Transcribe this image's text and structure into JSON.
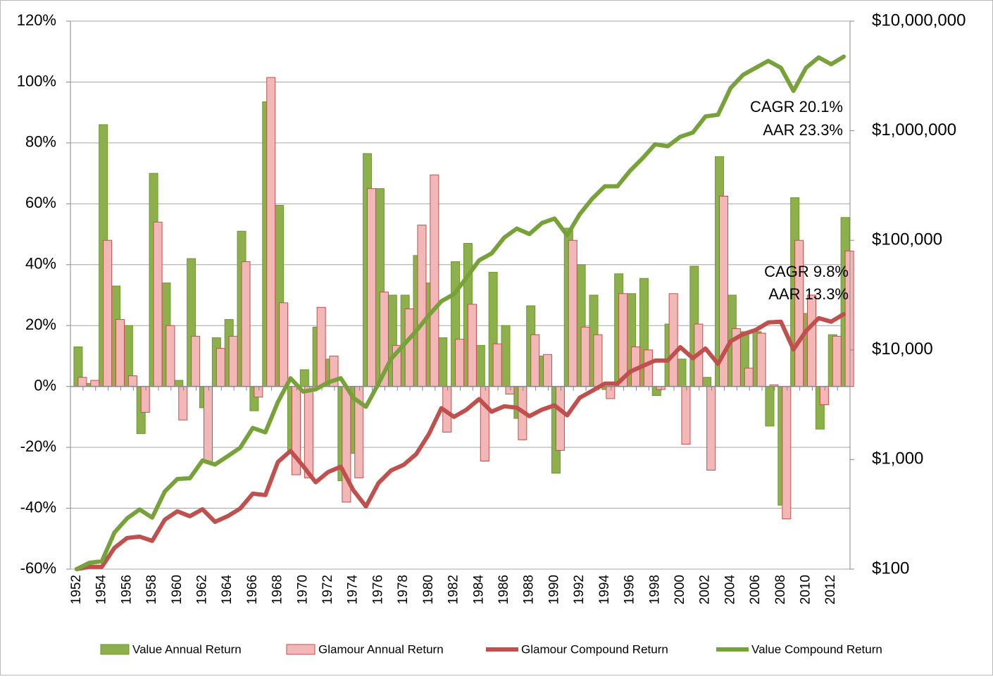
{
  "chart_data": {
    "type": "combo",
    "categories": [
      "1952",
      null,
      "1954",
      null,
      "1956",
      null,
      "1958",
      null,
      "1960",
      null,
      "1962",
      null,
      "1964",
      null,
      "1966",
      null,
      "1968",
      null,
      "1970",
      null,
      "1972",
      null,
      "1974",
      null,
      "1976",
      null,
      "1978",
      null,
      "1980",
      null,
      "1982",
      null,
      "1984",
      null,
      "1986",
      null,
      "1988",
      null,
      "1990",
      null,
      "1992",
      null,
      "1994",
      null,
      "1996",
      null,
      "1998",
      null,
      "2000",
      null,
      "2002",
      null,
      "2004",
      null,
      "2006",
      null,
      "2008",
      null,
      "2010",
      null,
      "2012",
      null
    ],
    "ylim": [
      -60,
      120
    ],
    "yticks": [
      {
        "value": -60,
        "label": "-60%"
      },
      {
        "value": -40,
        "label": "-40%"
      },
      {
        "value": -20,
        "label": "-20%"
      },
      {
        "value": 0,
        "label": "0%"
      },
      {
        "value": 20,
        "label": "20%"
      },
      {
        "value": 40,
        "label": "40%"
      },
      {
        "value": 60,
        "label": "60%"
      },
      {
        "value": 80,
        "label": "80%"
      },
      {
        "value": 100,
        "label": "100%"
      },
      {
        "value": 120,
        "label": "120%"
      }
    ],
    "y2lim": [
      100,
      10000000
    ],
    "y2ticks": [
      {
        "value": 100,
        "label": "$100"
      },
      {
        "value": 1000,
        "label": "$1,000"
      },
      {
        "value": 10000,
        "label": "$10,000"
      },
      {
        "value": 100000,
        "label": "$100,000"
      },
      {
        "value": 1000000,
        "label": "$1,000,000"
      },
      {
        "value": 10000000,
        "label": "$10,000,000"
      }
    ],
    "y2log": true,
    "grid": true,
    "legend": "bottom",
    "annotations": [
      "CAGR 20.1%",
      "AAR 23.3%",
      "CAGR 9.8%",
      "AAR 13.3%"
    ],
    "series": [
      {
        "name": "Value Annual Return",
        "type": "bar",
        "color": "#8db04c",
        "axis": "y",
        "values": [
          13,
          1,
          86,
          33,
          20,
          -15.5,
          70,
          34,
          2,
          42,
          -7,
          16,
          22,
          51,
          -8,
          93.5,
          59.5,
          -22,
          5.5,
          19.5,
          9,
          -31,
          -22,
          76.5,
          65,
          30,
          30,
          43,
          34,
          16,
          41,
          47,
          13.5,
          37.5,
          20,
          -10.5,
          26.5,
          10,
          -28.5,
          52,
          40,
          30,
          -1,
          37,
          30.5,
          35.5,
          -3,
          20.5,
          9,
          39.5,
          3,
          75.5,
          30,
          18,
          18,
          -13,
          -39,
          62,
          24,
          -14,
          17,
          55.5
        ]
      },
      {
        "name": "Glamour Annual Return",
        "type": "bar",
        "color": "#f2b8b8",
        "axis": "y",
        "values": [
          3,
          2,
          48,
          22,
          3.5,
          -8.5,
          54,
          20,
          -11,
          16.5,
          -25,
          12.5,
          16.5,
          41,
          -3.5,
          101.5,
          27.5,
          -29,
          -30,
          26,
          10,
          -38,
          -30,
          65,
          31,
          13.5,
          25.5,
          53,
          69.5,
          -15,
          15.5,
          27,
          -24.5,
          14,
          -2.5,
          -17.5,
          17,
          10.5,
          -21,
          48,
          19.5,
          17,
          -4,
          30.5,
          13,
          12,
          -1,
          30.5,
          -19,
          20.5,
          -27.5,
          62.5,
          19,
          6,
          17.5,
          0.5,
          -43.5,
          48,
          30,
          -6,
          16.5,
          44.5
        ]
      },
      {
        "name": "Glamour Compound Return",
        "type": "line",
        "color": "#c0504d",
        "axis": "y2",
        "values": [
          100,
          105,
          105,
          156,
          192,
          198,
          181,
          282,
          337,
          304,
          352,
          270,
          304,
          357,
          488,
          474,
          950,
          1200,
          875,
          620,
          770,
          860,
          525,
          373,
          610,
          795,
          895,
          1120,
          1700,
          2940,
          2450,
          2850,
          3560,
          2730,
          3060,
          2970,
          2490,
          2850,
          3120,
          2530,
          3660,
          4240,
          4930,
          4930,
          6320,
          7120,
          8000,
          8000,
          10600,
          8400,
          10300,
          7470,
          12000,
          13900,
          15200,
          17800,
          18100,
          10100,
          14900,
          19500,
          18100,
          21200
        ]
      },
      {
        "name": "Value Compound Return",
        "type": "line",
        "color": "#77a23a",
        "axis": "y2",
        "values": [
          100,
          114,
          118,
          216,
          290,
          350,
          295,
          510,
          665,
          675,
          980,
          900,
          1070,
          1280,
          1940,
          1770,
          3350,
          5520,
          4170,
          4370,
          5060,
          5520,
          3660,
          3030,
          4930,
          8270,
          11100,
          14900,
          20700,
          27800,
          32300,
          45600,
          65700,
          76000,
          106000,
          128000,
          114000,
          144000,
          158000,
          111000,
          173000,
          240000,
          311000,
          311000,
          430000,
          560000,
          753000,
          722000,
          880000,
          962000,
          1350000,
          1400000,
          2450000,
          3240000,
          3750000,
          4340000,
          3750000,
          2310000,
          3750000,
          4670000,
          4040000,
          4740000
        ]
      }
    ]
  }
}
